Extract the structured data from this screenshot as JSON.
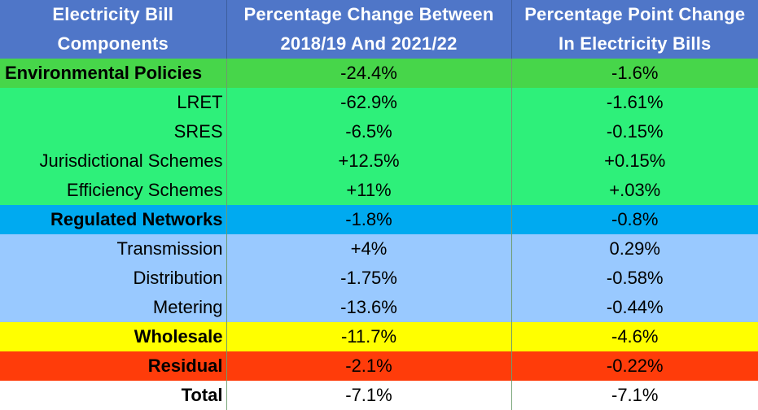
{
  "chart_data": {
    "type": "table",
    "columns": [
      [
        "Electricity Bill",
        "Components"
      ],
      [
        "Percentage Change Between",
        "2018/19 And 2021/22"
      ],
      [
        "Percentage Point Change",
        "In Electricity Bills"
      ]
    ],
    "rows": [
      {
        "component": "Environmental Policies",
        "pct_change": "-24.4%",
        "pp_change": "-1.6%"
      },
      {
        "component": "LRET",
        "pct_change": "-62.9%",
        "pp_change": "-1.61%"
      },
      {
        "component": "SRES",
        "pct_change": "-6.5%",
        "pp_change": "-0.15%"
      },
      {
        "component": "Jurisdictional Schemes",
        "pct_change": "+12.5%",
        "pp_change": "+0.15%"
      },
      {
        "component": "Efficiency Schemes",
        "pct_change": "+11%",
        "pp_change": "+.03%"
      },
      {
        "component": "Regulated Networks",
        "pct_change": "-1.8%",
        "pp_change": "-0.8%"
      },
      {
        "component": "Transmission",
        "pct_change": "+4%",
        "pp_change": "0.29%"
      },
      {
        "component": "Distribution",
        "pct_change": "-1.75%",
        "pp_change": "-0.58%"
      },
      {
        "component": "Metering",
        "pct_change": "-13.6%",
        "pp_change": "-0.44%"
      },
      {
        "component": "Wholesale",
        "pct_change": "-11.7%",
        "pp_change": "-4.6%"
      },
      {
        "component": "Residual",
        "pct_change": "-2.1%",
        "pp_change": "-0.22%"
      },
      {
        "component": "Total",
        "pct_change": "-7.1%",
        "pp_change": "-7.1%"
      }
    ]
  },
  "colors": {
    "header": "#4f76c8",
    "environmental_group": "#47d64a",
    "environmental_items": "#2ef07a",
    "networks_group": "#00aaf0",
    "networks_items": "#99c9ff",
    "wholesale": "#ffff00",
    "residual": "#ff3c0a",
    "total": "#ffffff"
  }
}
